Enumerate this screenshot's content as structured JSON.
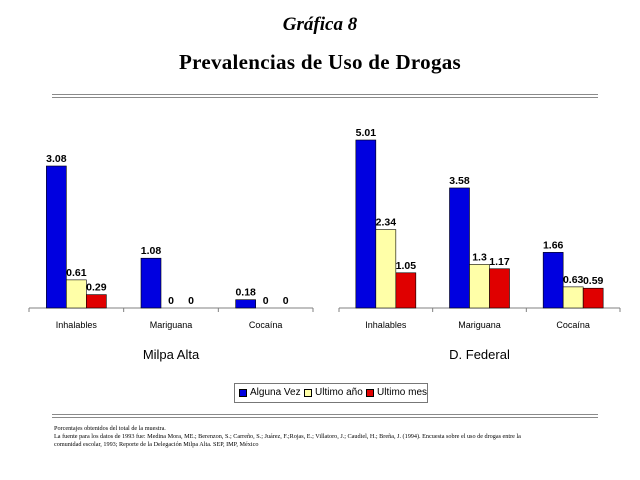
{
  "figure_number": "Gráfica 8",
  "title": "Prevalencias de Uso de Drogas",
  "colors": {
    "alguna_vez": "#0000e0",
    "ultimo_ano": "#ffffa8",
    "ultimo_mes": "#e00000",
    "axis": "#808080"
  },
  "legend": [
    {
      "label": "Alguna Vez",
      "color": "#0000e0"
    },
    {
      "label": "Ultimo año",
      "color": "#ffffa8"
    },
    {
      "label": "Ultimo mes",
      "color": "#e00000"
    }
  ],
  "chart_data": [
    {
      "type": "bar",
      "title": "Milpa Alta",
      "categories": [
        "Inhalables",
        "Mariguana",
        "Cocaína"
      ],
      "series": [
        {
          "name": "Alguna Vez",
          "values": [
            3.08,
            1.08,
            0.18
          ],
          "labels": [
            "3.08",
            "1.08",
            "0.18"
          ]
        },
        {
          "name": "Ultimo año",
          "values": [
            0.61,
            0,
            0
          ],
          "labels": [
            "0.61",
            "0",
            "0"
          ]
        },
        {
          "name": "Ultimo mes",
          "values": [
            0.29,
            0,
            0
          ],
          "labels": [
            "0.29",
            "0",
            "0"
          ]
        }
      ],
      "ylim": [
        0,
        3.08
      ],
      "grid": false
    },
    {
      "type": "bar",
      "title": "D. Federal",
      "categories": [
        "Inhalables",
        "Mariguana",
        "Cocaína"
      ],
      "series": [
        {
          "name": "Alguna Vez",
          "values": [
            5.01,
            3.58,
            1.66
          ],
          "labels": [
            "5.01",
            "3.58",
            "1.66"
          ]
        },
        {
          "name": "Ultimo año",
          "values": [
            2.34,
            1.3,
            0.63
          ],
          "labels": [
            "2.34",
            "1.3",
            "0.63"
          ]
        },
        {
          "name": "Ultimo mes",
          "values": [
            1.05,
            1.17,
            0.59
          ],
          "labels": [
            "1.05",
            "1.17",
            "0.59"
          ]
        }
      ],
      "ylim": [
        0,
        5.01
      ],
      "grid": false
    }
  ],
  "notes": [
    "Porcentajes obtenidos del total de la muestra.",
    "La fuente para los datos de 1993 fue: Medina Mora, ME.; Berenzon, S.; Carreño, S.; Juárez, F.;Rojas, E.; Villatoro, J.; Caudiel, H.; Breña, J. (1994). Encuesta sobre el uso de drogas entre la",
    "comunidad escolar, 1993; Reporte de la Delegación Milpa Alta. SEP, IMP, México"
  ]
}
